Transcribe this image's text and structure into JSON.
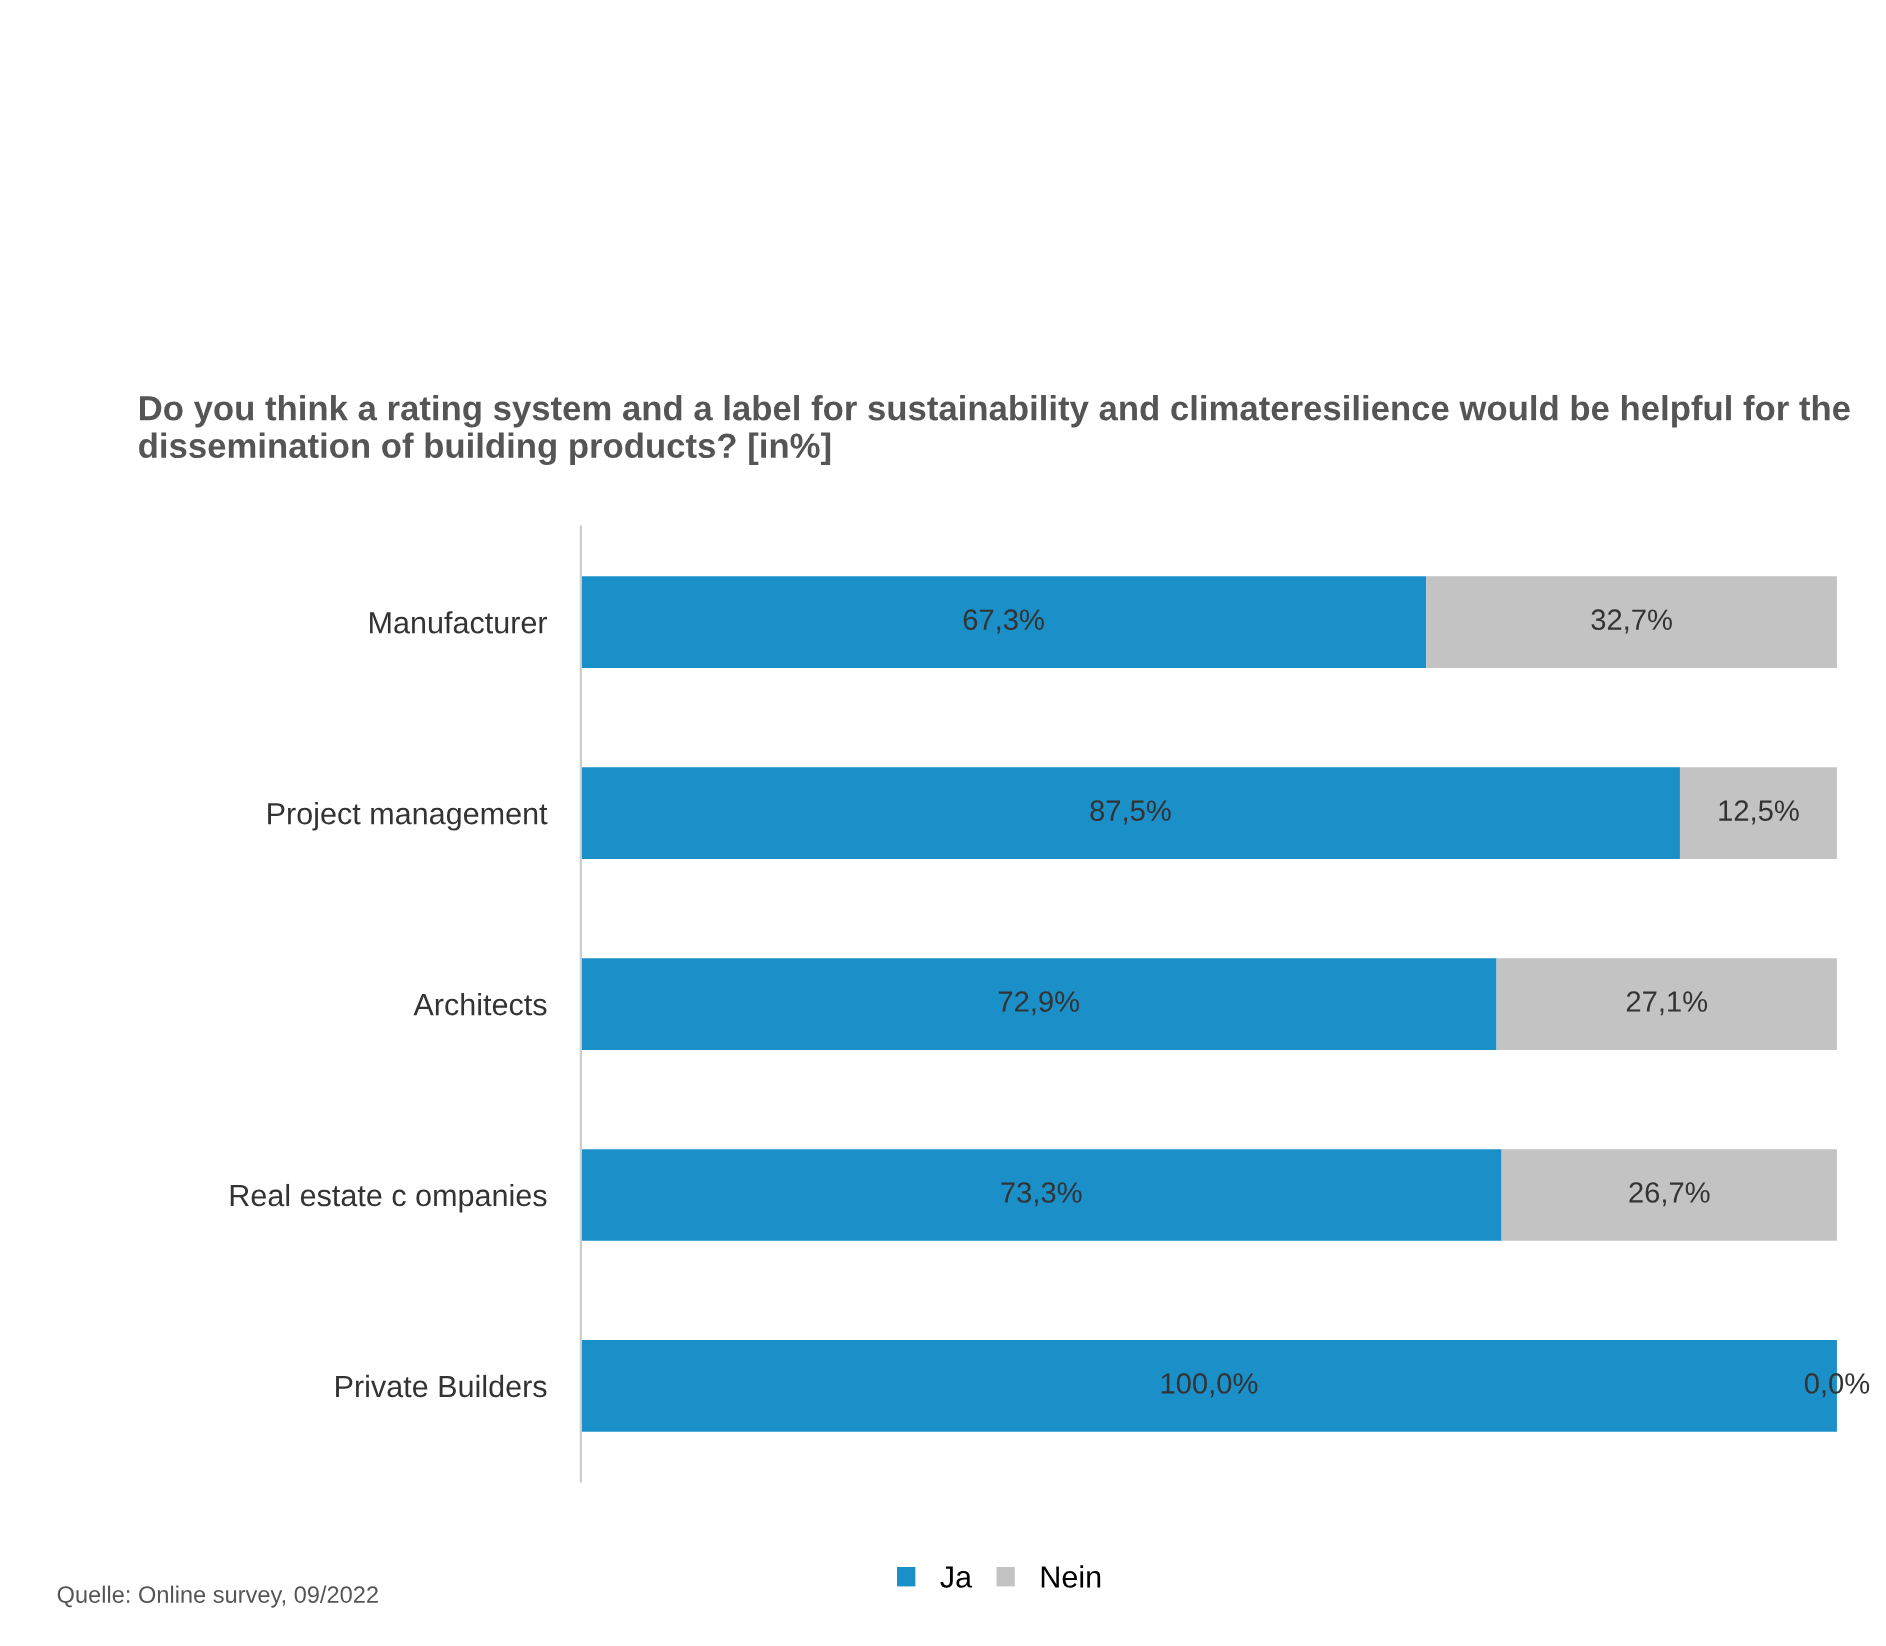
{
  "chart_data": {
    "type": "bar",
    "orientation": "horizontal",
    "stacked": true,
    "title": "Do you think a rating system and a label for sustainability and climateresilience would be helpful for the dissemination of building products? [in%]",
    "categories": [
      "Manufacturer",
      "Project management",
      "Architects",
      "Real estate c ompanies",
      "Private Builders"
    ],
    "series": [
      {
        "name": "Ja",
        "color": "#1b8fc8",
        "values": [
          67.3,
          87.5,
          72.9,
          73.3,
          100.0
        ],
        "value_labels": [
          "67,3%",
          "87,5%",
          "72,9%",
          "73,3%",
          "100,0%"
        ]
      },
      {
        "name": "Nein",
        "color": "#c3c3c3",
        "values": [
          32.7,
          12.5,
          27.1,
          26.7,
          0.0
        ],
        "value_labels": [
          "32,7%",
          "12,5%",
          "27,1%",
          "26,7%",
          "0,0%"
        ]
      }
    ],
    "legend": "bottom",
    "grid": false,
    "annotations": [
      "Quelle: Online survey, 09/2022"
    ]
  }
}
